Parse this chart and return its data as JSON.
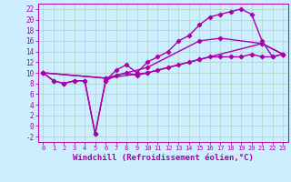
{
  "background_color": "#cceeff",
  "grid_color": "#b0d8cc",
  "line_color": "#aa00aa",
  "marker": "D",
  "markersize": 2.2,
  "linewidth": 1.0,
  "xlabel": "Windchill (Refroidissement éolien,°C)",
  "xlabel_fontsize": 6.5,
  "xlim": [
    -0.5,
    23.5
  ],
  "ylim": [
    -3,
    23
  ],
  "yticks": [
    -2,
    0,
    2,
    4,
    6,
    8,
    10,
    12,
    14,
    16,
    18,
    20,
    22
  ],
  "xticks": [
    0,
    1,
    2,
    3,
    4,
    5,
    6,
    7,
    8,
    9,
    10,
    11,
    12,
    13,
    14,
    15,
    16,
    17,
    18,
    19,
    20,
    21,
    22,
    23
  ],
  "line1_x": [
    0,
    1,
    2,
    3,
    4,
    5,
    6,
    7,
    8,
    9,
    10,
    11,
    12,
    13,
    14,
    15,
    16,
    17,
    18,
    19,
    20,
    21,
    22,
    23
  ],
  "line1_y": [
    10,
    8.5,
    8,
    8.5,
    8.5,
    -1.5,
    8.5,
    10.5,
    11.5,
    10,
    12,
    13,
    14,
    16,
    17,
    19,
    20.5,
    21,
    21.5,
    22,
    21,
    16,
    13,
    13.5
  ],
  "line2_x": [
    0,
    1,
    2,
    3,
    4,
    5,
    6,
    7,
    8,
    9,
    10,
    11,
    12,
    13,
    14,
    15,
    16,
    17,
    18,
    19,
    20,
    21,
    22,
    23
  ],
  "line2_y": [
    10,
    8.5,
    8,
    8.5,
    8.5,
    -1.5,
    8.5,
    9.5,
    10,
    9.5,
    10,
    10.5,
    11,
    11.5,
    12,
    12.5,
    13,
    13,
    13,
    13,
    13.5,
    13,
    13,
    13.5
  ],
  "line3_x": [
    0,
    6,
    10,
    15,
    21,
    23
  ],
  "line3_y": [
    10,
    9,
    10,
    12.5,
    15.5,
    13.5
  ],
  "line4_x": [
    0,
    6,
    10,
    15,
    17,
    21,
    23
  ],
  "line4_y": [
    10,
    9,
    11,
    16,
    16.5,
    15.5,
    13.5
  ]
}
